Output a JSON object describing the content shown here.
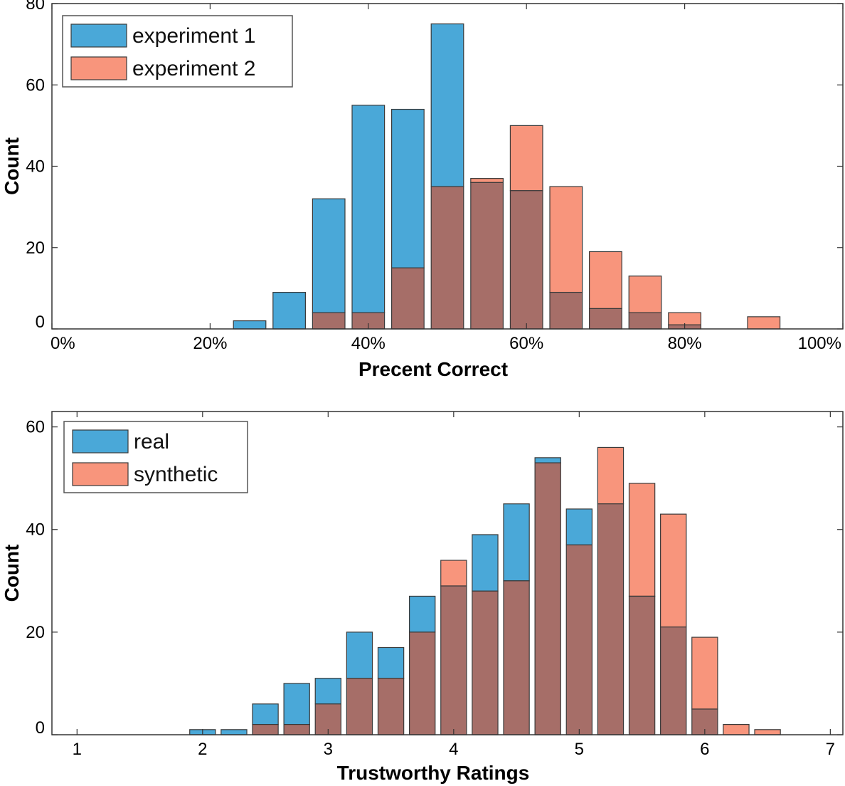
{
  "colors": {
    "series_a": "#4aa8d8",
    "series_b": "#f8957c",
    "overlap": "#a66e68",
    "edge": "#3a3a3a"
  },
  "chart_data": [
    {
      "type": "bar",
      "title": "",
      "xlabel": "Precent Correct",
      "ylabel": "Count",
      "xlim": [
        0.0,
        1.0
      ],
      "ylim": [
        0,
        80
      ],
      "x_ticks": [
        0.0,
        0.2,
        0.4,
        0.6,
        0.8,
        1.0
      ],
      "x_tick_labels": [
        "0%",
        "20%",
        "40%",
        "60%",
        "80%",
        "100%"
      ],
      "y_ticks": [
        0,
        20,
        40,
        60,
        80
      ],
      "y_tick_labels": [
        "0",
        "20",
        "40",
        "60",
        "80"
      ],
      "bin_width": 0.05,
      "bin_centers": [
        0.25,
        0.3,
        0.35,
        0.4,
        0.45,
        0.5,
        0.55,
        0.6,
        0.65,
        0.7,
        0.75,
        0.8,
        0.85,
        0.9
      ],
      "series": [
        {
          "name": "experiment 1",
          "values": [
            2,
            9,
            32,
            55,
            54,
            75,
            36,
            34,
            9,
            5,
            4,
            1,
            0,
            0
          ]
        },
        {
          "name": "experiment 2",
          "values": [
            0,
            0,
            4,
            4,
            15,
            35,
            37,
            50,
            35,
            19,
            13,
            4,
            0,
            3
          ]
        }
      ],
      "legend_position": "top-left",
      "grid": false
    },
    {
      "type": "bar",
      "title": "",
      "xlabel": "Trustworthy Ratings",
      "ylabel": "Count",
      "xlim": [
        0.8,
        7.1
      ],
      "ylim": [
        0,
        63
      ],
      "x_ticks": [
        1,
        2,
        3,
        4,
        5,
        6,
        7
      ],
      "x_tick_labels": [
        "1",
        "2",
        "3",
        "4",
        "5",
        "6",
        "7"
      ],
      "y_ticks": [
        0,
        20,
        40,
        60
      ],
      "y_tick_labels": [
        "0",
        "20",
        "40",
        "60"
      ],
      "bin_width": 0.25,
      "bin_centers": [
        2.0,
        2.25,
        2.5,
        2.75,
        3.0,
        3.25,
        3.5,
        3.75,
        4.0,
        4.25,
        4.5,
        4.75,
        5.0,
        5.25,
        5.5,
        5.75,
        6.0,
        6.25,
        6.5
      ],
      "series": [
        {
          "name": "real",
          "values": [
            1,
            1,
            6,
            10,
            11,
            20,
            17,
            27,
            29,
            39,
            45,
            54,
            44,
            45,
            27,
            21,
            5,
            0,
            0
          ]
        },
        {
          "name": "synthetic",
          "values": [
            0,
            0,
            2,
            2,
            6,
            11,
            11,
            20,
            34,
            28,
            30,
            53,
            37,
            56,
            49,
            43,
            19,
            2,
            1
          ]
        }
      ],
      "legend_position": "top-left",
      "grid": false
    }
  ]
}
